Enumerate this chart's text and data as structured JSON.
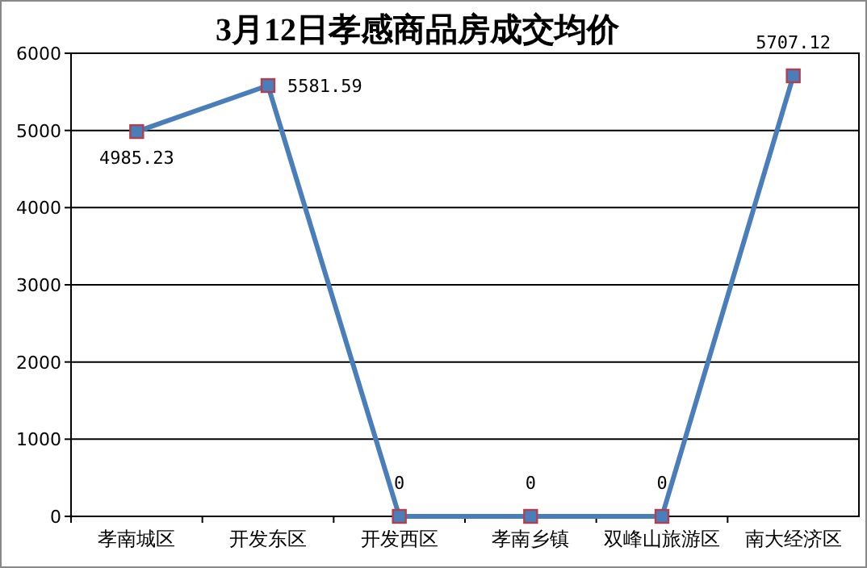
{
  "chart_data": {
    "type": "line",
    "title": "3月12日孝感商品房成交均价",
    "categories": [
      "孝南城区",
      "开发东区",
      "开发西区",
      "孝南乡镇",
      "双峰山旅游区",
      "南大经济区"
    ],
    "series": [
      {
        "color": "#4a7ebb",
        "values": [
          4985.23,
          5581.59,
          0,
          0,
          0,
          5707.12
        ]
      }
    ],
    "value_labels": [
      "4985.23",
      "5581.59",
      "0",
      "0",
      "0",
      "5707.12"
    ],
    "ylim": [
      0,
      6000
    ],
    "yticks": [
      0,
      1000,
      2000,
      3000,
      4000,
      5000,
      6000
    ],
    "grid": "y",
    "marker": "square",
    "line_style": "solid"
  }
}
